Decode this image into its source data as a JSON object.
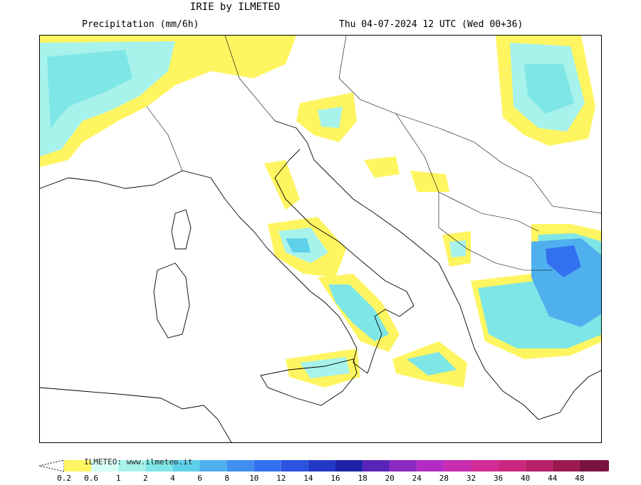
{
  "header": {
    "title": "IRIE by ILMETEO",
    "variable": "Precipitation (mm/6h)",
    "valid_time": "Thu 04-07-2024 12 UTC (Wed 00+36)"
  },
  "legend": {
    "credit": "ILMETEO: www.ilmeteo.it",
    "thresholds": [
      "0.2",
      "0.6",
      "1",
      "2",
      "4",
      "6",
      "8",
      "10",
      "12",
      "14",
      "16",
      "18",
      "20",
      "24",
      "28",
      "32",
      "36",
      "40",
      "44",
      "48"
    ],
    "colors": [
      "#fff560",
      "#d8fff6",
      "#a8f2ec",
      "#7ee6e6",
      "#5ed0ea",
      "#4fb0ef",
      "#3f8ff0",
      "#3370f0",
      "#2b52e0",
      "#2438c8",
      "#1e22a8",
      "#5a24b8",
      "#8a28c0",
      "#b22cc4",
      "#c82cb0",
      "#d42a96",
      "#cc2680",
      "#b82068",
      "#9c1a52",
      "#7a1240"
    ]
  },
  "map": {
    "region": "Italy and Balkans",
    "land_color": "#ffffff",
    "border_color": "#000000"
  }
}
